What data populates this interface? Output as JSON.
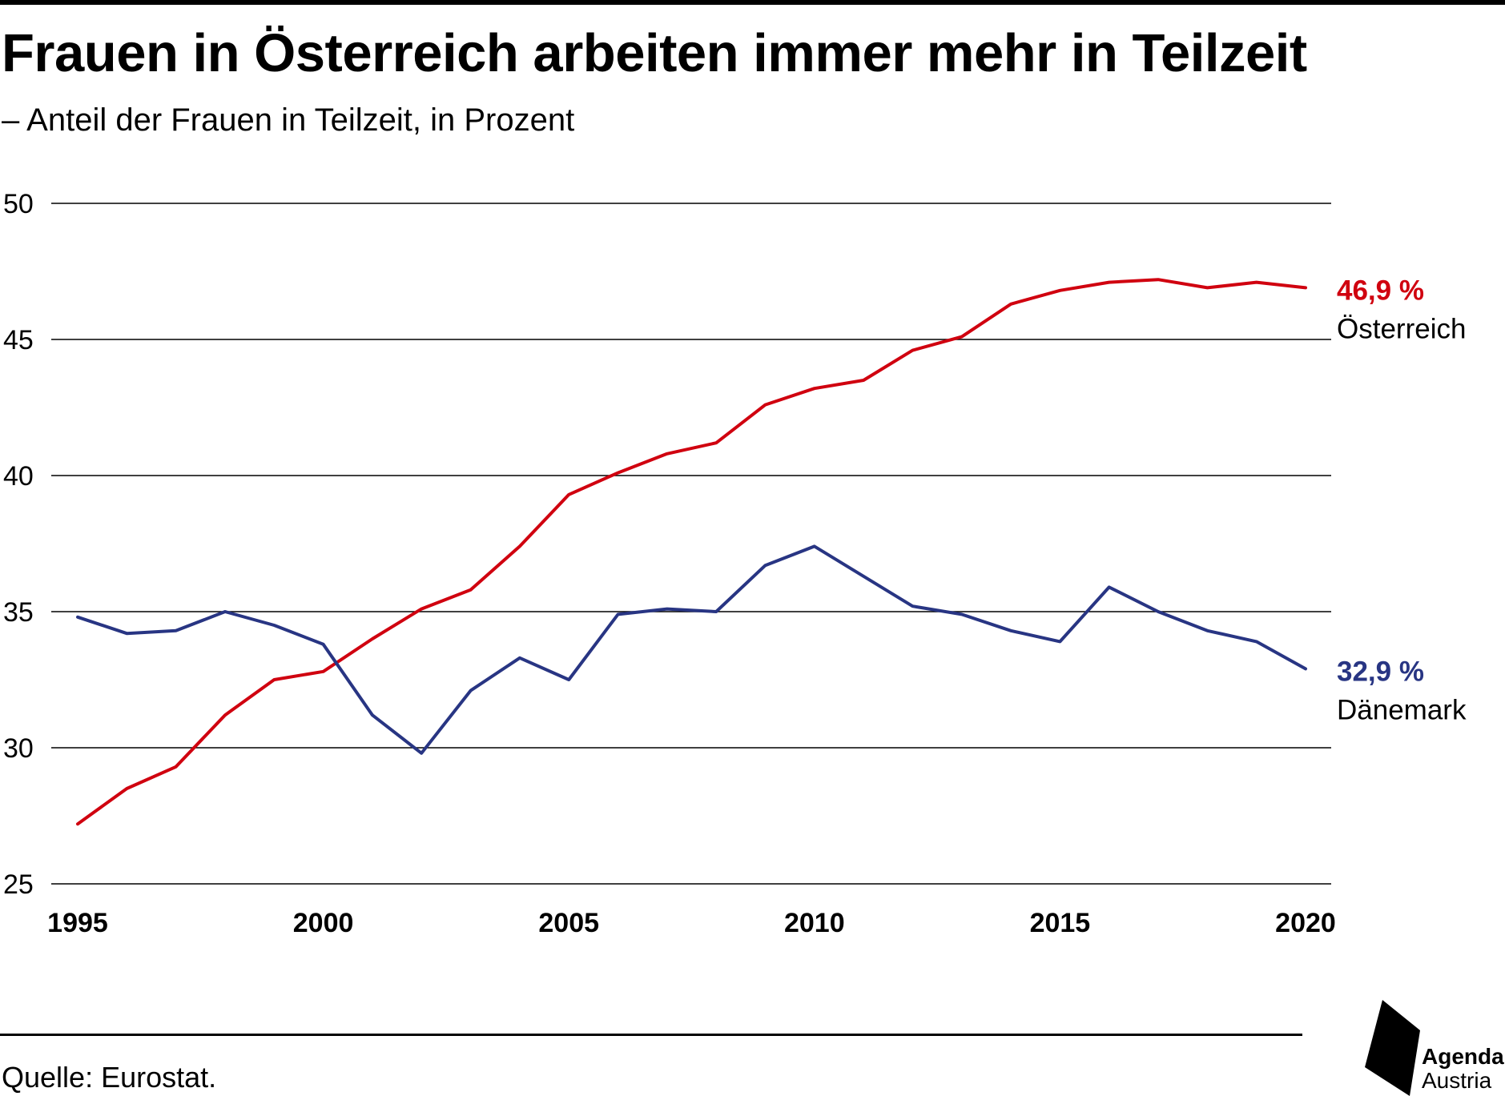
{
  "header": {
    "title": "Frauen in Österreich arbeiten immer mehr in Teilzeit",
    "subtitle": "– Anteil der Frauen in Teilzeit, in Prozent"
  },
  "footer": {
    "source": "Quelle: Eurostat.",
    "logo_line1": "Agenda",
    "logo_line2": "Austria"
  },
  "chart_data": {
    "type": "line",
    "title": "Frauen in Österreich arbeiten immer mehr in Teilzeit",
    "subtitle": "– Anteil der Frauen in Teilzeit, in Prozent",
    "xlabel": "",
    "ylabel": "",
    "x": [
      1995,
      1996,
      1997,
      1998,
      1999,
      2000,
      2001,
      2002,
      2003,
      2004,
      2005,
      2006,
      2007,
      2008,
      2009,
      2010,
      2011,
      2012,
      2013,
      2014,
      2015,
      2016,
      2017,
      2018,
      2019,
      2020
    ],
    "xlim": [
      1995,
      2020
    ],
    "ylim": [
      25,
      50
    ],
    "x_ticks": [
      "1995",
      "2000",
      "2005",
      "2010",
      "2015",
      "2020"
    ],
    "y_ticks": [
      "25",
      "30",
      "35",
      "40",
      "45",
      "50"
    ],
    "grid": "horizontal",
    "series": [
      {
        "name": "Österreich",
        "end_label": "46,9 %",
        "color": "#d0000f",
        "values": [
          27.2,
          28.5,
          29.3,
          31.2,
          32.5,
          32.8,
          34.0,
          35.1,
          35.8,
          37.4,
          39.3,
          40.1,
          40.8,
          41.2,
          42.6,
          43.2,
          43.5,
          44.6,
          45.1,
          46.3,
          46.8,
          47.1,
          47.2,
          46.9,
          47.1,
          46.9
        ]
      },
      {
        "name": "Dänemark",
        "end_label": "32,9 %",
        "color": "#283583",
        "values": [
          34.8,
          34.2,
          34.3,
          35.0,
          34.5,
          33.8,
          31.2,
          29.8,
          32.1,
          33.3,
          32.5,
          34.9,
          35.1,
          35.0,
          36.7,
          37.4,
          36.3,
          35.2,
          34.9,
          34.3,
          33.9,
          35.9,
          35.0,
          34.3,
          33.9,
          32.9
        ]
      }
    ]
  }
}
